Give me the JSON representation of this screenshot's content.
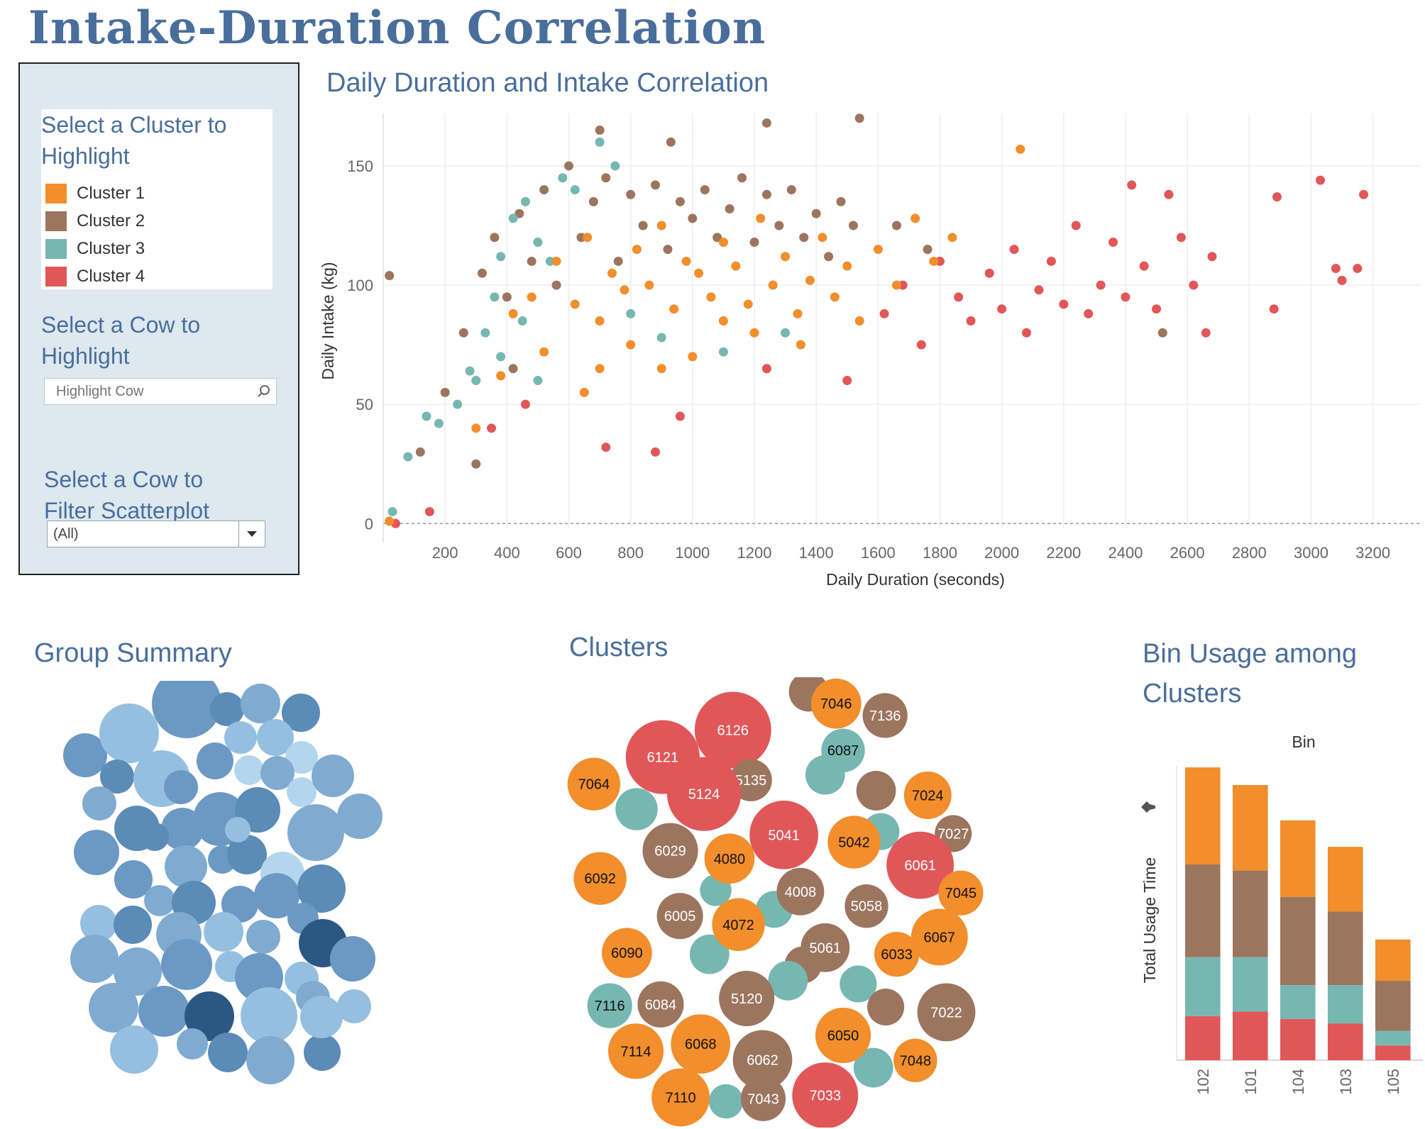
{
  "dashboard": {
    "title": "Intake-Duration Correlation"
  },
  "controls": {
    "cluster_heading": "Select a Cluster to Highlight",
    "cluster_items": [
      {
        "label": "Cluster 1",
        "color": "#f28e2b"
      },
      {
        "label": "Cluster 2",
        "color": "#9c755f"
      },
      {
        "label": "Cluster 3",
        "color": "#76b7b2"
      },
      {
        "label": "Cluster 4",
        "color": "#e15759"
      }
    ],
    "cow_highlight_heading": "Select a Cow to Highlight",
    "cow_highlight_placeholder": "Highlight Cow",
    "cow_filter_heading": "Select a Cow to Filter Scatterplot",
    "cow_filter_value": "(All)"
  },
  "scatter": {
    "title": "Daily Duration and Intake Correlation",
    "chart_data": {
      "type": "scatter",
      "title": "Daily Duration and Intake Correlation",
      "xlabel": "Daily Duration (seconds)",
      "ylabel": "Daily Intake (kg)",
      "xlim": [
        0,
        3350
      ],
      "ylim": [
        -2,
        172
      ],
      "xticks": [
        200,
        400,
        600,
        800,
        1000,
        1200,
        1400,
        1600,
        1800,
        2000,
        2200,
        2400,
        2600,
        2800,
        3000,
        3200
      ],
      "yticks": [
        0,
        50,
        100,
        150
      ],
      "grid": true,
      "series": [
        {
          "name": "Cluster 1",
          "color": "#f28e2b",
          "points": [
            [
              20,
              1
            ],
            [
              300,
              40
            ],
            [
              380,
              62
            ],
            [
              420,
              88
            ],
            [
              480,
              95
            ],
            [
              520,
              72
            ],
            [
              560,
              110
            ],
            [
              620,
              92
            ],
            [
              660,
              120
            ],
            [
              700,
              85
            ],
            [
              740,
              105
            ],
            [
              780,
              98
            ],
            [
              820,
              115
            ],
            [
              860,
              100
            ],
            [
              900,
              125
            ],
            [
              940,
              90
            ],
            [
              980,
              110
            ],
            [
              1020,
              105
            ],
            [
              1060,
              95
            ],
            [
              1100,
              118
            ],
            [
              1140,
              108
            ],
            [
              1180,
              92
            ],
            [
              1220,
              128
            ],
            [
              1260,
              100
            ],
            [
              1300,
              112
            ],
            [
              1340,
              88
            ],
            [
              1380,
              102
            ],
            [
              1420,
              120
            ],
            [
              1460,
              95
            ],
            [
              1500,
              108
            ],
            [
              1540,
              85
            ],
            [
              1600,
              115
            ],
            [
              1660,
              100
            ],
            [
              1720,
              128
            ],
            [
              1780,
              110
            ],
            [
              1840,
              120
            ],
            [
              2060,
              157
            ],
            [
              650,
              55
            ],
            [
              700,
              65
            ],
            [
              800,
              75
            ],
            [
              1000,
              70
            ],
            [
              1200,
              80
            ],
            [
              1350,
              75
            ],
            [
              900,
              65
            ],
            [
              1100,
              85
            ]
          ]
        },
        {
          "name": "Cluster 2",
          "color": "#9c755f",
          "points": [
            [
              20,
              104
            ],
            [
              120,
              30
            ],
            [
              200,
              55
            ],
            [
              260,
              80
            ],
            [
              320,
              105
            ],
            [
              360,
              120
            ],
            [
              400,
              95
            ],
            [
              440,
              130
            ],
            [
              480,
              110
            ],
            [
              520,
              140
            ],
            [
              560,
              100
            ],
            [
              600,
              150
            ],
            [
              640,
              120
            ],
            [
              680,
              135
            ],
            [
              720,
              145
            ],
            [
              760,
              110
            ],
            [
              800,
              138
            ],
            [
              840,
              125
            ],
            [
              880,
              142
            ],
            [
              920,
              115
            ],
            [
              960,
              135
            ],
            [
              1000,
              128
            ],
            [
              1040,
              140
            ],
            [
              1080,
              120
            ],
            [
              1120,
              132
            ],
            [
              1160,
              145
            ],
            [
              1200,
              118
            ],
            [
              1240,
              138
            ],
            [
              1280,
              125
            ],
            [
              1320,
              140
            ],
            [
              1360,
              120
            ],
            [
              1400,
              130
            ],
            [
              1440,
              112
            ],
            [
              1480,
              135
            ],
            [
              1520,
              125
            ],
            [
              1540,
              170
            ],
            [
              1240,
              168
            ],
            [
              930,
              160
            ],
            [
              700,
              165
            ],
            [
              1660,
              125
            ],
            [
              1760,
              115
            ],
            [
              2520,
              80
            ],
            [
              300,
              25
            ],
            [
              420,
              65
            ]
          ]
        },
        {
          "name": "Cluster 3",
          "color": "#76b7b2",
          "points": [
            [
              30,
              5
            ],
            [
              80,
              28
            ],
            [
              140,
              45
            ],
            [
              180,
              42
            ],
            [
              240,
              50
            ],
            [
              280,
              64
            ],
            [
              300,
              60
            ],
            [
              330,
              80
            ],
            [
              360,
              95
            ],
            [
              380,
              112
            ],
            [
              420,
              128
            ],
            [
              460,
              135
            ],
            [
              500,
              118
            ],
            [
              540,
              110
            ],
            [
              580,
              145
            ],
            [
              620,
              140
            ],
            [
              700,
              160
            ],
            [
              750,
              150
            ],
            [
              380,
              70
            ],
            [
              450,
              85
            ],
            [
              500,
              60
            ],
            [
              1300,
              80
            ],
            [
              1100,
              72
            ],
            [
              900,
              78
            ],
            [
              800,
              88
            ]
          ]
        },
        {
          "name": "Cluster 4",
          "color": "#e15759",
          "points": [
            [
              40,
              0
            ],
            [
              150,
              5
            ],
            [
              350,
              40
            ],
            [
              460,
              50
            ],
            [
              720,
              32
            ],
            [
              880,
              30
            ],
            [
              960,
              45
            ],
            [
              1240,
              65
            ],
            [
              1500,
              60
            ],
            [
              1620,
              88
            ],
            [
              1680,
              100
            ],
            [
              1740,
              75
            ],
            [
              1800,
              110
            ],
            [
              1860,
              95
            ],
            [
              1900,
              85
            ],
            [
              1960,
              105
            ],
            [
              2000,
              90
            ],
            [
              2040,
              115
            ],
            [
              2080,
              80
            ],
            [
              2120,
              98
            ],
            [
              2160,
              110
            ],
            [
              2200,
              92
            ],
            [
              2240,
              125
            ],
            [
              2280,
              88
            ],
            [
              2320,
              100
            ],
            [
              2360,
              118
            ],
            [
              2400,
              95
            ],
            [
              2420,
              142
            ],
            [
              2460,
              108
            ],
            [
              2500,
              90
            ],
            [
              2540,
              138
            ],
            [
              2580,
              120
            ],
            [
              2620,
              100
            ],
            [
              2660,
              80
            ],
            [
              2680,
              112
            ],
            [
              2890,
              137
            ],
            [
              2880,
              90
            ],
            [
              3030,
              144
            ],
            [
              3080,
              107
            ],
            [
              3100,
              102
            ],
            [
              3150,
              107
            ],
            [
              3170,
              138
            ]
          ]
        }
      ]
    }
  },
  "group_summary": {
    "title": "Group Summary"
  },
  "clusters_view": {
    "title": "Clusters",
    "bubbles": [
      {
        "label": "7046",
        "cluster": 1
      },
      {
        "label": "7136",
        "cluster": 2
      },
      {
        "label": "6126",
        "cluster": 4
      },
      {
        "label": "6121",
        "cluster": 4
      },
      {
        "label": "6087",
        "cluster": 3
      },
      {
        "label": "5135",
        "cluster": 2
      },
      {
        "label": "7064",
        "cluster": 1
      },
      {
        "label": "5124",
        "cluster": 4
      },
      {
        "label": "7024",
        "cluster": 1
      },
      {
        "label": "7027",
        "cluster": 2
      },
      {
        "label": "5041",
        "cluster": 4
      },
      {
        "label": "5042",
        "cluster": 1
      },
      {
        "label": "6029",
        "cluster": 2
      },
      {
        "label": "4080",
        "cluster": 1
      },
      {
        "label": "6061",
        "cluster": 4
      },
      {
        "label": "7045",
        "cluster": 1
      },
      {
        "label": "6092",
        "cluster": 1
      },
      {
        "label": "4008",
        "cluster": 2
      },
      {
        "label": "5058",
        "cluster": 2
      },
      {
        "label": "6005",
        "cluster": 2
      },
      {
        "label": "4072",
        "cluster": 1
      },
      {
        "label": "6067",
        "cluster": 1
      },
      {
        "label": "6090",
        "cluster": 1
      },
      {
        "label": "5061",
        "cluster": 2
      },
      {
        "label": "6033",
        "cluster": 1
      },
      {
        "label": "7116",
        "cluster": 3
      },
      {
        "label": "6084",
        "cluster": 2
      },
      {
        "label": "5120",
        "cluster": 2
      },
      {
        "label": "7022",
        "cluster": 2
      },
      {
        "label": "6050",
        "cluster": 1
      },
      {
        "label": "7114",
        "cluster": 1
      },
      {
        "label": "6068",
        "cluster": 1
      },
      {
        "label": "6062",
        "cluster": 2
      },
      {
        "label": "7048",
        "cluster": 1
      },
      {
        "label": "7033",
        "cluster": 4
      },
      {
        "label": "7110",
        "cluster": 1
      },
      {
        "label": "7043",
        "cluster": 2
      }
    ]
  },
  "bin_usage": {
    "title": "Bin Usage among Clusters",
    "chart_data": {
      "type": "bar",
      "stacked": true,
      "title": "Bin",
      "xlabel": "",
      "ylabel": "Total Usage Time",
      "categories": [
        "102",
        "101",
        "104",
        "103",
        "105"
      ],
      "ylim": [
        0,
        100
      ],
      "series": [
        {
          "name": "Cluster 4",
          "color": "#e15759",
          "values": [
            15,
            16.5,
            14,
            12.5,
            5
          ]
        },
        {
          "name": "Cluster 3",
          "color": "#76b7b2",
          "values": [
            20,
            18.5,
            11.5,
            13,
            5
          ]
        },
        {
          "name": "Cluster 2",
          "color": "#9c755f",
          "values": [
            31.5,
            29.5,
            30,
            25,
            17
          ]
        },
        {
          "name": "Cluster 1",
          "color": "#f28e2b",
          "values": [
            33,
            29,
            26,
            22,
            14
          ]
        }
      ]
    }
  }
}
